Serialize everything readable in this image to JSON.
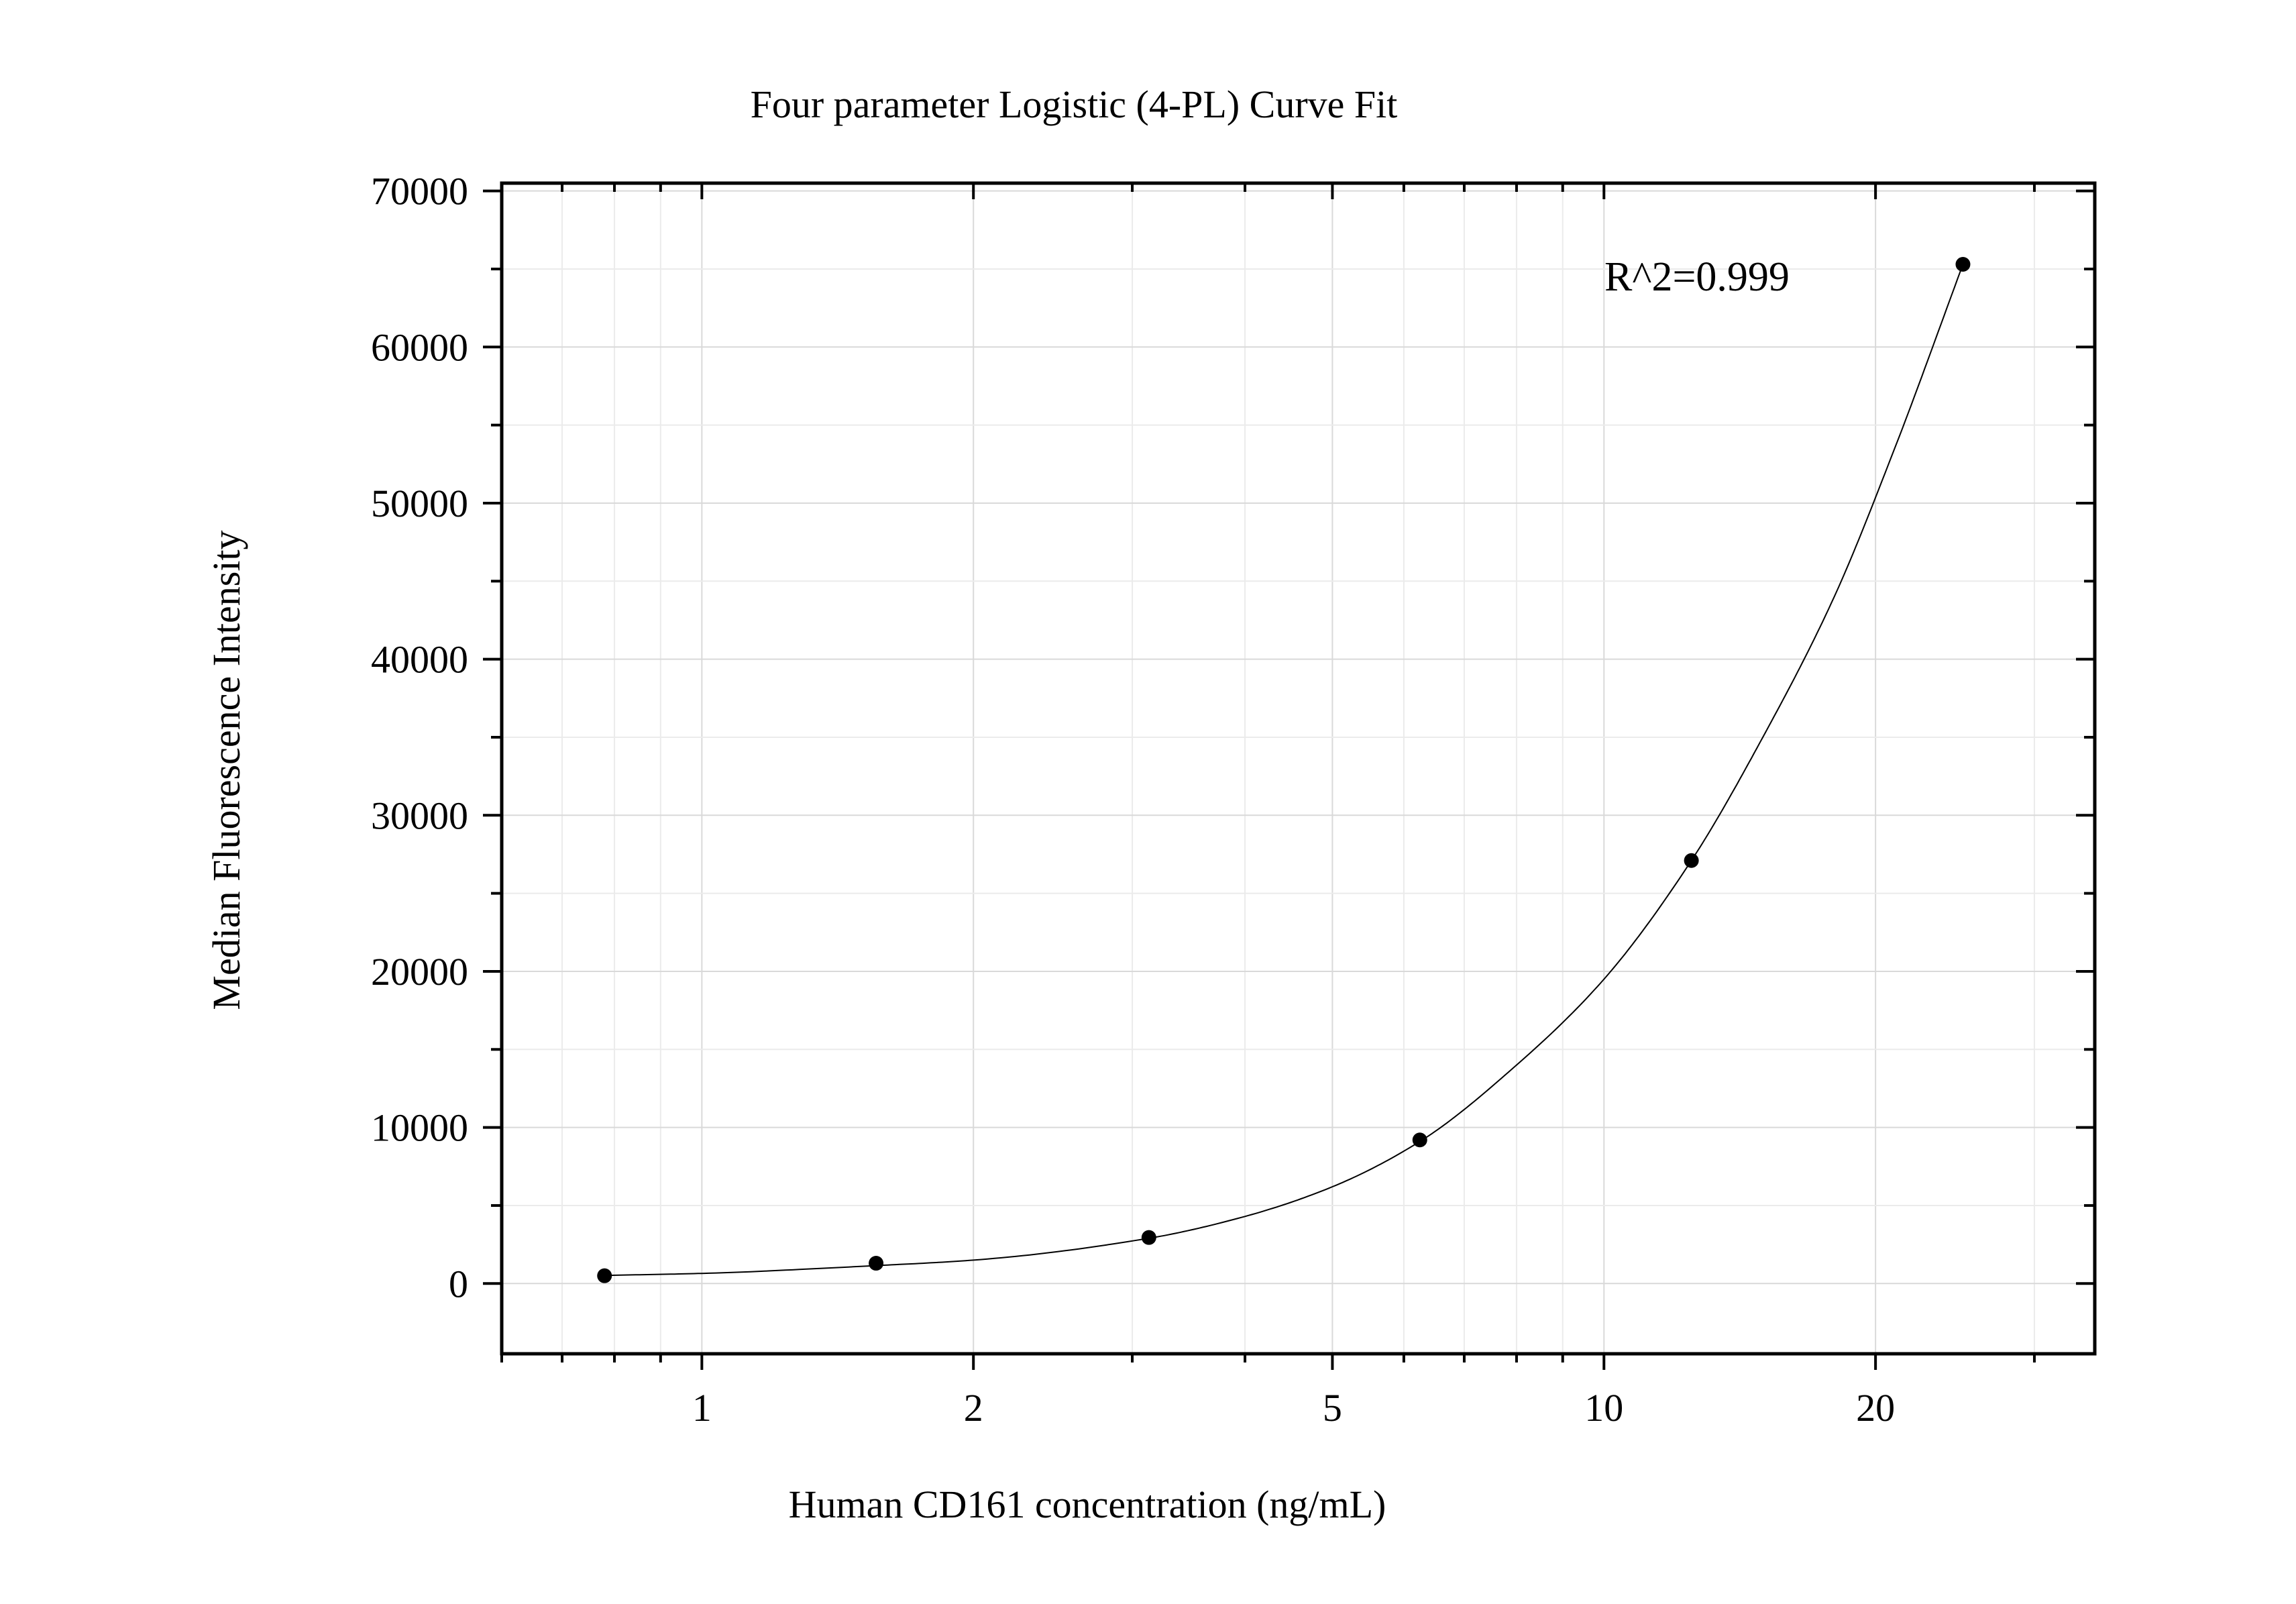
{
  "chart_data": {
    "type": "scatter",
    "title": "Four parameter Logistic (4-PL) Curve Fit",
    "xlabel": "Human CD161 concentration (ng/mL)",
    "ylabel": "Median Fluorescence Intensity",
    "x_scale": "log",
    "xlim": [
      0.6,
      35
    ],
    "ylim": [
      -4500,
      70500
    ],
    "x_ticks": [
      1,
      2,
      5,
      10,
      20
    ],
    "x_tick_labels": [
      "1",
      "2",
      "5",
      "10",
      "20"
    ],
    "y_ticks": [
      0,
      10000,
      20000,
      30000,
      40000,
      50000,
      60000,
      70000
    ],
    "y_tick_labels": [
      "0",
      "10000",
      "20000",
      "30000",
      "40000",
      "50000",
      "60000",
      "70000"
    ],
    "grid": true,
    "annotation": "R^2=0.999",
    "series": [
      {
        "points": [
          {
            "x": 0.78,
            "y": 500
          },
          {
            "x": 1.56,
            "y": 1300
          },
          {
            "x": 3.13,
            "y": 2950
          },
          {
            "x": 6.25,
            "y": 9200
          },
          {
            "x": 12.5,
            "y": 27100
          },
          {
            "x": 25,
            "y": 65300
          }
        ]
      }
    ],
    "fit_curve": {
      "x_min": 0.78,
      "x_max": 25,
      "points": [
        {
          "x": 0.78,
          "y": 520
        },
        {
          "x": 1.0,
          "y": 650
        },
        {
          "x": 1.56,
          "y": 1150
        },
        {
          "x": 2.0,
          "y": 1500
        },
        {
          "x": 3.13,
          "y": 2900
        },
        {
          "x": 4.0,
          "y": 4300
        },
        {
          "x": 5.0,
          "y": 6200
        },
        {
          "x": 6.25,
          "y": 9100
        },
        {
          "x": 8.0,
          "y": 14000
        },
        {
          "x": 10.0,
          "y": 19500
        },
        {
          "x": 12.5,
          "y": 27100
        },
        {
          "x": 15.0,
          "y": 35000
        },
        {
          "x": 18.0,
          "y": 44000
        },
        {
          "x": 21.0,
          "y": 53500
        },
        {
          "x": 25.0,
          "y": 65300
        }
      ]
    }
  }
}
